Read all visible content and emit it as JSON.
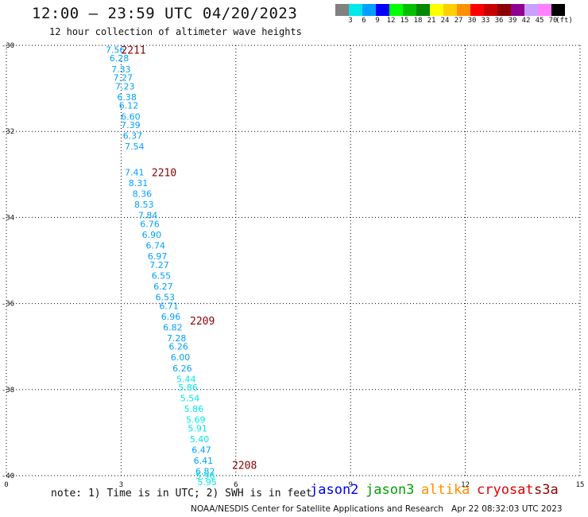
{
  "title": "12:00 – 23:59 UTC 04/20/2023",
  "subtitle": "12 hour collection of altimeter wave heights",
  "legend": {
    "unit": "(ft)",
    "colors": [
      "#808080",
      "#00e8e8",
      "#00a0ff",
      "#0000ff",
      "#00ff00",
      "#00c000",
      "#008800",
      "#ffff00",
      "#ffd000",
      "#ff9000",
      "#ff0000",
      "#c80000",
      "#8b0000",
      "#900090",
      "#c8a0ff",
      "#ff80ff",
      "#000000"
    ],
    "labels": [
      "3",
      "6",
      "9",
      "12",
      "15",
      "18",
      "21",
      "24",
      "27",
      "30",
      "33",
      "36",
      "39",
      "42",
      "45",
      "70"
    ]
  },
  "note": "note: 1) Time is in UTC; 2) SWH is in feet",
  "satellites": [
    {
      "name": "jason2",
      "color": "#0000ee"
    },
    {
      "name": "jason3",
      "color": "#00a000"
    },
    {
      "name": "altika",
      "color": "#ff8c00"
    },
    {
      "name": "cryosat",
      "color": "#e00000"
    },
    {
      "name": "s3a",
      "color": "#8b0000"
    }
  ],
  "credit": "NOAA/NESDIS Center for Satellite Applications and Research",
  "generated": "Apr 22 08:32:03 UTC 2023",
  "chart_data": {
    "type": "scatter",
    "xlim": [
      0,
      15
    ],
    "ylim": [
      -40,
      -30
    ],
    "x_ticks": [
      0,
      3,
      6,
      9,
      12,
      15
    ],
    "y_ticks": [
      -30,
      -32,
      -34,
      -36,
      -38,
      -40
    ],
    "grid": true,
    "swh_colors": {
      "6-9": "#00a0ff",
      "3-6": "#00e8e8"
    },
    "track_labels": [
      {
        "text": "2211",
        "x": 3.0,
        "y": -30.1,
        "color": "#8b0000"
      },
      {
        "text": "2210",
        "x": 3.8,
        "y": -32.95,
        "color": "#8b0000"
      },
      {
        "text": "2209",
        "x": 4.8,
        "y": -36.4,
        "color": "#8b0000"
      },
      {
        "text": "2208",
        "x": 5.9,
        "y": -39.75,
        "color": "#8b0000"
      }
    ],
    "points": [
      {
        "x": 2.85,
        "y": -30.1,
        "v": "7.56"
      },
      {
        "x": 2.95,
        "y": -30.3,
        "v": "6.28"
      },
      {
        "x": 3.0,
        "y": -30.55,
        "v": "7.33"
      },
      {
        "x": 3.05,
        "y": -30.75,
        "v": "7.27"
      },
      {
        "x": 3.1,
        "y": -30.95,
        "v": "7.23"
      },
      {
        "x": 3.15,
        "y": -31.2,
        "v": "6.38"
      },
      {
        "x": 3.2,
        "y": -31.4,
        "v": "6.12"
      },
      {
        "x": 3.25,
        "y": -31.65,
        "v": "6.60"
      },
      {
        "x": 3.25,
        "y": -31.85,
        "v": "7.39"
      },
      {
        "x": 3.3,
        "y": -32.1,
        "v": "6.37"
      },
      {
        "x": 3.35,
        "y": -32.35,
        "v": "7.54"
      },
      {
        "x": 3.35,
        "y": -32.95,
        "v": "7.41"
      },
      {
        "x": 3.45,
        "y": -33.2,
        "v": "8.31"
      },
      {
        "x": 3.55,
        "y": -33.45,
        "v": "8.36"
      },
      {
        "x": 3.6,
        "y": -33.7,
        "v": "8.53"
      },
      {
        "x": 3.7,
        "y": -33.95,
        "v": "7.84"
      },
      {
        "x": 3.75,
        "y": -34.15,
        "v": "6.76"
      },
      {
        "x": 3.8,
        "y": -34.4,
        "v": "6.90"
      },
      {
        "x": 3.9,
        "y": -34.65,
        "v": "6.74"
      },
      {
        "x": 3.95,
        "y": -34.9,
        "v": "6.97"
      },
      {
        "x": 4.0,
        "y": -35.1,
        "v": "7.27"
      },
      {
        "x": 4.05,
        "y": -35.35,
        "v": "6.55"
      },
      {
        "x": 4.1,
        "y": -35.6,
        "v": "6.27"
      },
      {
        "x": 4.15,
        "y": -35.85,
        "v": "6.53"
      },
      {
        "x": 4.25,
        "y": -36.05,
        "v": "6.71"
      },
      {
        "x": 4.3,
        "y": -36.3,
        "v": "6.96"
      },
      {
        "x": 4.35,
        "y": -36.55,
        "v": "6.82"
      },
      {
        "x": 4.45,
        "y": -36.8,
        "v": "7.28"
      },
      {
        "x": 4.5,
        "y": -37.0,
        "v": "6.26"
      },
      {
        "x": 4.55,
        "y": -37.25,
        "v": "6.00"
      },
      {
        "x": 4.6,
        "y": -37.5,
        "v": "6.26"
      },
      {
        "x": 4.7,
        "y": -37.75,
        "v": "5.44"
      },
      {
        "x": 4.75,
        "y": -37.95,
        "v": "5.86"
      },
      {
        "x": 4.8,
        "y": -38.2,
        "v": "5.54"
      },
      {
        "x": 4.9,
        "y": -38.45,
        "v": "5.86"
      },
      {
        "x": 4.95,
        "y": -38.7,
        "v": "5.69"
      },
      {
        "x": 5.0,
        "y": -38.9,
        "v": "5.91"
      },
      {
        "x": 5.05,
        "y": -39.15,
        "v": "5.40"
      },
      {
        "x": 5.1,
        "y": -39.4,
        "v": "6.47"
      },
      {
        "x": 5.15,
        "y": -39.65,
        "v": "6.41"
      },
      {
        "x": 5.2,
        "y": -39.9,
        "v": "6.82"
      },
      {
        "x": 5.2,
        "y": -40.0,
        "v": "5.96"
      },
      {
        "x": 5.25,
        "y": -40.15,
        "v": "5.95"
      }
    ]
  }
}
